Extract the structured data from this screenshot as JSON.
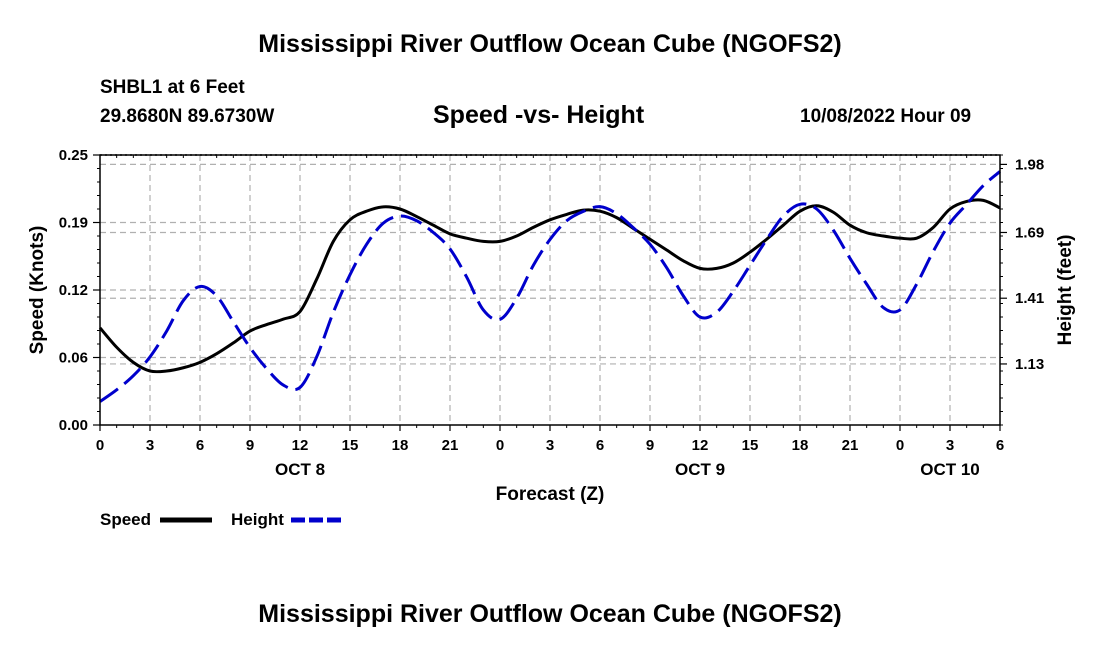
{
  "header": {
    "title": "Mississippi River Outflow Ocean Cube (NGOFS2)",
    "station": "SHBL1 at 6 Feet",
    "coordinates": "29.8680N  89.6730W",
    "datetime": "10/08/2022 Hour 09"
  },
  "footer": {
    "title": "Mississippi River Outflow Ocean Cube (NGOFS2)"
  },
  "chart_data": {
    "type": "line",
    "title": "Speed -vs- Height",
    "xlabel": "Forecast (Z)",
    "ylabel": "Speed (Knots)",
    "y2label": "Height (feet)",
    "x_range_hours": [
      0,
      54
    ],
    "ylim": [
      0,
      0.25
    ],
    "y2lim": [
      0.87,
      2.02
    ],
    "x_tick_labels": [
      "0",
      "3",
      "6",
      "9",
      "12",
      "15",
      "18",
      "21",
      "0",
      "3",
      "6",
      "9",
      "12",
      "15",
      "18",
      "21",
      "0",
      "3",
      "6"
    ],
    "day_labels": [
      {
        "label": "OCT 8",
        "hour": 12
      },
      {
        "label": "OCT 9",
        "hour": 36
      },
      {
        "label": "OCT 10",
        "hour": 51
      }
    ],
    "y_ticks": [
      "0.00",
      "0.06",
      "0.12",
      "0.19",
      "0.25"
    ],
    "y_tick_values": [
      0,
      0.0625,
      0.125,
      0.1875,
      0.25
    ],
    "y2_ticks": [
      "1.13",
      "1.41",
      "1.69",
      "1.98"
    ],
    "y2_tick_values": [
      1.13,
      1.41,
      1.69,
      1.98
    ],
    "grid": true,
    "legend_position": "bottom-left",
    "series": [
      {
        "name": "Speed",
        "axis": "left",
        "color": "#000000",
        "style": "solid",
        "x": [
          0,
          1,
          2,
          3,
          4,
          5,
          6,
          7,
          8,
          9,
          10,
          11,
          12,
          13,
          14,
          15,
          16,
          17,
          18,
          19,
          20,
          21,
          22,
          23,
          24,
          25,
          26,
          27,
          28,
          29,
          30,
          31,
          32,
          33,
          34,
          35,
          36,
          37,
          38,
          39,
          40,
          41,
          42,
          43,
          44,
          45,
          46,
          47,
          48,
          49,
          50,
          51,
          52,
          53,
          54
        ],
        "values": [
          0.09,
          0.072,
          0.058,
          0.05,
          0.05,
          0.053,
          0.058,
          0.066,
          0.076,
          0.087,
          0.093,
          0.098,
          0.105,
          0.135,
          0.17,
          0.19,
          0.198,
          0.202,
          0.2,
          0.193,
          0.185,
          0.177,
          0.173,
          0.17,
          0.17,
          0.175,
          0.183,
          0.19,
          0.195,
          0.199,
          0.198,
          0.192,
          0.182,
          0.172,
          0.162,
          0.152,
          0.145,
          0.145,
          0.15,
          0.16,
          0.172,
          0.185,
          0.198,
          0.203,
          0.197,
          0.185,
          0.178,
          0.175,
          0.173,
          0.173,
          0.183,
          0.2,
          0.207,
          0.208,
          0.201
        ]
      },
      {
        "name": "Height",
        "axis": "right",
        "color": "#0000cc",
        "style": "dashed",
        "x": [
          0,
          1,
          2,
          3,
          4,
          5,
          6,
          7,
          8,
          9,
          10,
          11,
          12,
          13,
          14,
          15,
          16,
          17,
          18,
          19,
          20,
          21,
          22,
          23,
          24,
          25,
          26,
          27,
          28,
          29,
          30,
          31,
          32,
          33,
          34,
          35,
          36,
          37,
          38,
          39,
          40,
          41,
          42,
          43,
          44,
          45,
          46,
          47,
          48,
          49,
          50,
          51,
          52,
          53,
          54
        ],
        "values": [
          0.97,
          1.02,
          1.08,
          1.16,
          1.27,
          1.4,
          1.46,
          1.42,
          1.31,
          1.2,
          1.11,
          1.04,
          1.03,
          1.16,
          1.35,
          1.51,
          1.64,
          1.73,
          1.76,
          1.74,
          1.69,
          1.62,
          1.5,
          1.36,
          1.32,
          1.41,
          1.55,
          1.66,
          1.74,
          1.78,
          1.8,
          1.77,
          1.71,
          1.64,
          1.54,
          1.42,
          1.33,
          1.35,
          1.44,
          1.55,
          1.66,
          1.76,
          1.81,
          1.79,
          1.7,
          1.58,
          1.47,
          1.37,
          1.36,
          1.47,
          1.61,
          1.73,
          1.81,
          1.89,
          1.95
        ]
      }
    ]
  }
}
